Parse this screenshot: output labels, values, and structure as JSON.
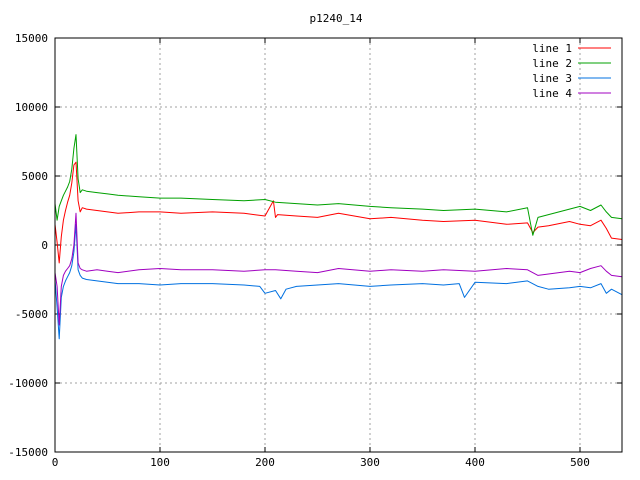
{
  "chart_data": {
    "type": "line",
    "title": "p1240_14",
    "xlabel": "",
    "ylabel": "",
    "xlim": [
      0,
      540
    ],
    "ylim": [
      -15000,
      15000
    ],
    "xticks": [
      0,
      100,
      200,
      300,
      400,
      500
    ],
    "yticks": [
      -15000,
      -10000,
      -5000,
      0,
      5000,
      10000,
      15000
    ],
    "xtick_labels": [
      "0",
      "100",
      "200",
      "300",
      "400",
      "500"
    ],
    "ytick_labels": [
      "-15000",
      "-10000",
      "-5000",
      "0",
      "5000",
      "10000",
      "15000"
    ],
    "grid": true,
    "legend_position": "top-right",
    "series": [
      {
        "name": "line 1",
        "color": "#ff0000",
        "x": [
          0,
          2,
          4,
          6,
          8,
          10,
          12,
          14,
          16,
          18,
          20,
          22,
          24,
          26,
          30,
          40,
          50,
          60,
          80,
          100,
          120,
          150,
          180,
          200,
          208,
          210,
          212,
          230,
          250,
          270,
          300,
          320,
          350,
          370,
          400,
          430,
          450,
          455,
          460,
          470,
          490,
          500,
          510,
          520,
          525,
          530,
          540
        ],
        "y": [
          1500,
          200,
          -1300,
          600,
          1800,
          2500,
          3100,
          3600,
          4500,
          5800,
          6000,
          3200,
          2400,
          2700,
          2600,
          2500,
          2400,
          2300,
          2400,
          2400,
          2300,
          2400,
          2300,
          2100,
          3200,
          2000,
          2200,
          2100,
          2000,
          2300,
          1900,
          2000,
          1800,
          1700,
          1800,
          1500,
          1600,
          900,
          1300,
          1400,
          1700,
          1500,
          1400,
          1800,
          1200,
          500,
          400
        ]
      },
      {
        "name": "line 2",
        "color": "#00a000",
        "x": [
          0,
          2,
          4,
          6,
          8,
          10,
          12,
          14,
          16,
          18,
          20,
          22,
          24,
          26,
          30,
          40,
          50,
          60,
          80,
          100,
          120,
          150,
          180,
          200,
          210,
          230,
          250,
          270,
          300,
          320,
          350,
          370,
          400,
          430,
          450,
          455,
          460,
          470,
          490,
          500,
          510,
          520,
          525,
          530,
          540
        ],
        "y": [
          3000,
          1800,
          2800,
          3200,
          3600,
          3900,
          4200,
          4600,
          5500,
          7000,
          8000,
          4800,
          3800,
          4000,
          3900,
          3800,
          3700,
          3600,
          3500,
          3400,
          3400,
          3300,
          3200,
          3300,
          3100,
          3000,
          2900,
          3000,
          2800,
          2700,
          2600,
          2500,
          2600,
          2400,
          2700,
          700,
          2000,
          2200,
          2600,
          2800,
          2500,
          2900,
          2400,
          2000,
          1900
        ]
      },
      {
        "name": "line 3",
        "color": "#0070e0",
        "x": [
          0,
          2,
          4,
          6,
          8,
          10,
          12,
          14,
          16,
          18,
          20,
          22,
          24,
          26,
          30,
          40,
          50,
          60,
          80,
          100,
          120,
          150,
          180,
          195,
          200,
          210,
          215,
          220,
          230,
          250,
          270,
          300,
          320,
          350,
          370,
          385,
          390,
          400,
          430,
          450,
          460,
          470,
          490,
          500,
          510,
          520,
          525,
          530,
          540
        ],
        "y": [
          -2500,
          -4500,
          -6800,
          -3800,
          -3000,
          -2600,
          -2300,
          -2000,
          -1500,
          -500,
          1500,
          -1800,
          -2200,
          -2400,
          -2500,
          -2600,
          -2700,
          -2800,
          -2800,
          -2900,
          -2800,
          -2800,
          -2900,
          -3000,
          -3500,
          -3300,
          -3900,
          -3200,
          -3000,
          -2900,
          -2800,
          -3000,
          -2900,
          -2800,
          -2900,
          -2800,
          -3800,
          -2700,
          -2800,
          -2600,
          -3000,
          -3200,
          -3100,
          -3000,
          -3100,
          -2800,
          -3500,
          -3200,
          -3600
        ]
      },
      {
        "name": "line 4",
        "color": "#a000c0",
        "x": [
          0,
          2,
          4,
          6,
          8,
          10,
          12,
          14,
          16,
          18,
          20,
          22,
          24,
          26,
          30,
          40,
          50,
          60,
          80,
          100,
          120,
          150,
          180,
          200,
          210,
          230,
          250,
          270,
          300,
          320,
          350,
          370,
          400,
          430,
          450,
          460,
          470,
          490,
          500,
          510,
          520,
          525,
          530,
          540
        ],
        "y": [
          -2000,
          -3000,
          -5800,
          -3000,
          -2200,
          -1900,
          -1700,
          -1500,
          -1000,
          0,
          2300,
          -1300,
          -1700,
          -1800,
          -1900,
          -1800,
          -1900,
          -2000,
          -1800,
          -1700,
          -1800,
          -1800,
          -1900,
          -1800,
          -1800,
          -1900,
          -2000,
          -1700,
          -1900,
          -1800,
          -1900,
          -1800,
          -1900,
          -1700,
          -1800,
          -2200,
          -2100,
          -1900,
          -2000,
          -1700,
          -1500,
          -1900,
          -2200,
          -2300
        ]
      }
    ]
  }
}
